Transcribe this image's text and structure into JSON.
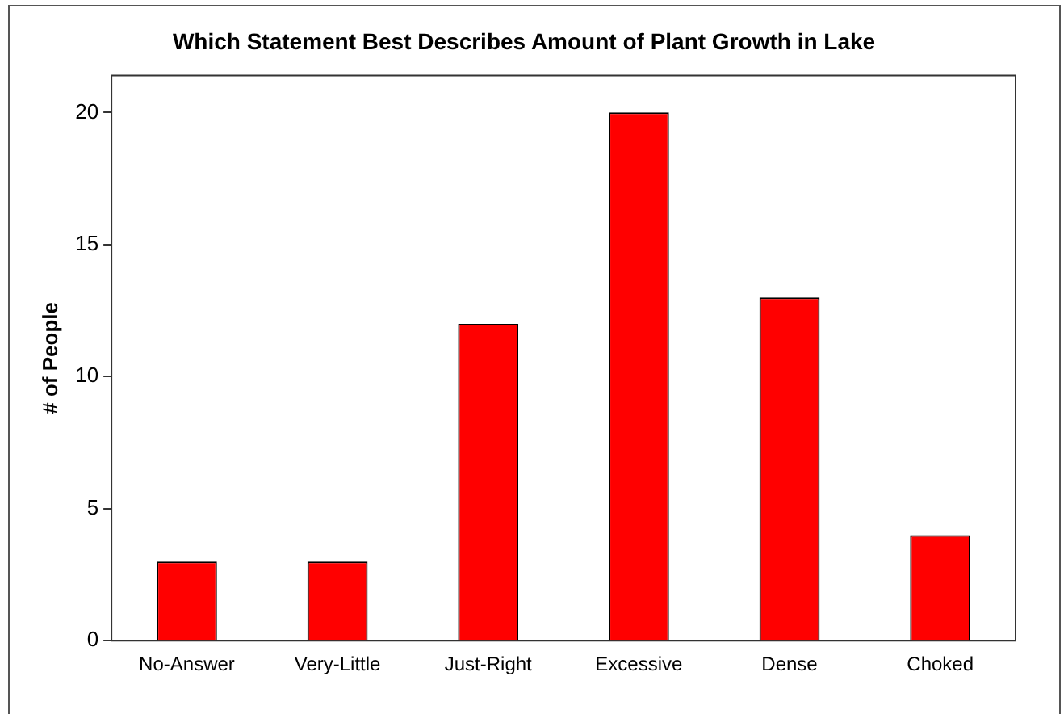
{
  "chart_data": {
    "type": "bar",
    "title": "Which Statement Best Describes Amount of Plant Growth in Lake",
    "ylabel": "# of People",
    "categories": [
      "No-Answer",
      "Very-Little",
      "Just-Right",
      "Excessive",
      "Dense",
      "Choked"
    ],
    "values": [
      3,
      3,
      12,
      20,
      13,
      4
    ],
    "color": "#ff0000",
    "ylim": [
      0,
      21.4
    ],
    "yticks": [
      0,
      5,
      10,
      15,
      20
    ],
    "grid": false,
    "legend": false
  }
}
